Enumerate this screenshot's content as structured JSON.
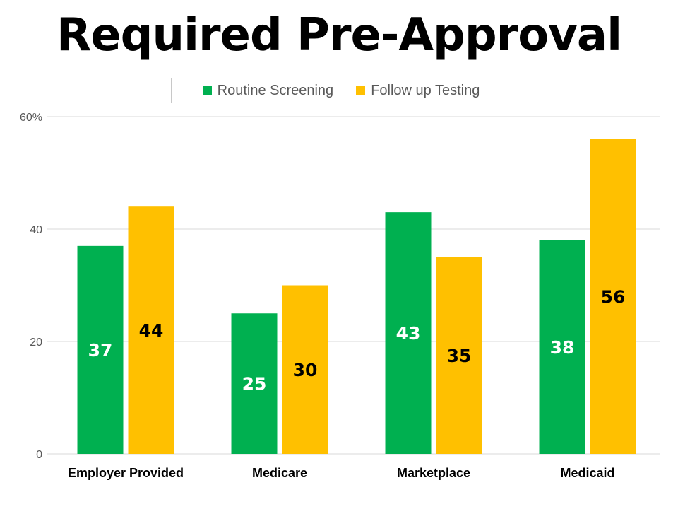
{
  "chart_data": {
    "type": "bar",
    "title": "Required Pre-Approval",
    "categories": [
      "Employer Provided",
      "Medicare",
      "Marketplace",
      "Medicaid"
    ],
    "series": [
      {
        "name": "Routine Screening",
        "values": [
          37,
          25,
          43,
          38
        ],
        "color": "#00b050",
        "label_color": "#ffffff"
      },
      {
        "name": "Follow up Testing",
        "values": [
          44,
          30,
          35,
          56
        ],
        "color": "#ffc000",
        "label_color": "#000000"
      }
    ],
    "ylim": [
      0,
      60
    ],
    "yticks": [
      {
        "value": 0,
        "label": "0"
      },
      {
        "value": 20,
        "label": "20"
      },
      {
        "value": 40,
        "label": "40"
      },
      {
        "value": 60,
        "label": "60%"
      }
    ],
    "gridlines": true,
    "legend_position": "top-center",
    "gridline_color": "#d9d9d9",
    "tick_color": "#595959"
  }
}
